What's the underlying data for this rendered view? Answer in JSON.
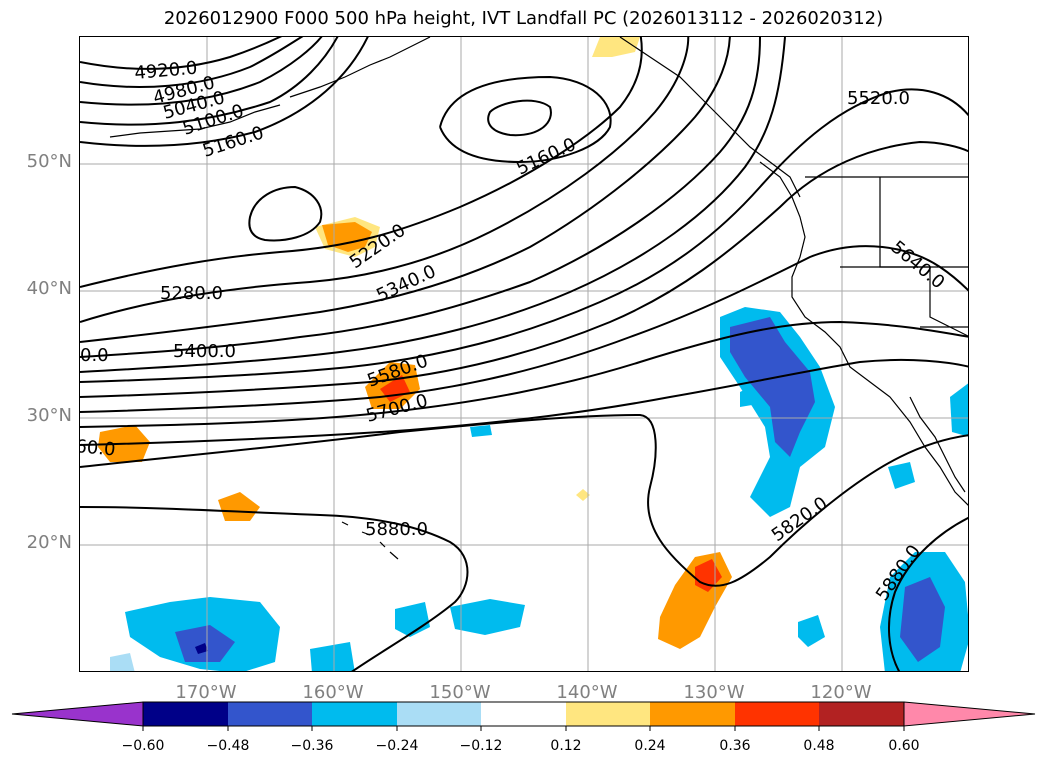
{
  "title": "2026012900 F000 500 hPa height, IVT Landfall PC (2026013112 - 2026020312)",
  "lat_labels": [
    "50°N",
    "40°N",
    "30°N",
    "20°N"
  ],
  "lon_labels": [
    "170°W",
    "160°W",
    "150°W",
    "140°W",
    "130°W",
    "120°W"
  ],
  "contour_labels": [
    "4920.0",
    "4980.0",
    "5040.0",
    "5100.0",
    "5160.0",
    "5160.0",
    "5220.0",
    "5280.0",
    "5340.0",
    "5400.0",
    "5580.0",
    "5700.0",
    "5880.0",
    "5520.0",
    "5640.0",
    "5820.0",
    "5880.0",
    "60.0",
    "0.0"
  ],
  "colorbar": {
    "ticks": [
      "−0.60",
      "−0.48",
      "−0.36",
      "−0.24",
      "−0.12",
      "0.12",
      "0.24",
      "0.36",
      "0.48",
      "0.60"
    ],
    "colors": [
      "#9933cc",
      "#000088",
      "#3355cc",
      "#00bbee",
      "#aaddf5",
      "#ffffff",
      "#ffe680",
      "#ff9900",
      "#ff3300",
      "#b22222",
      "#ff88aa"
    ]
  },
  "colors": {
    "contour": "#000000",
    "coast": "#000000",
    "grid": "#aaaaaa"
  }
}
